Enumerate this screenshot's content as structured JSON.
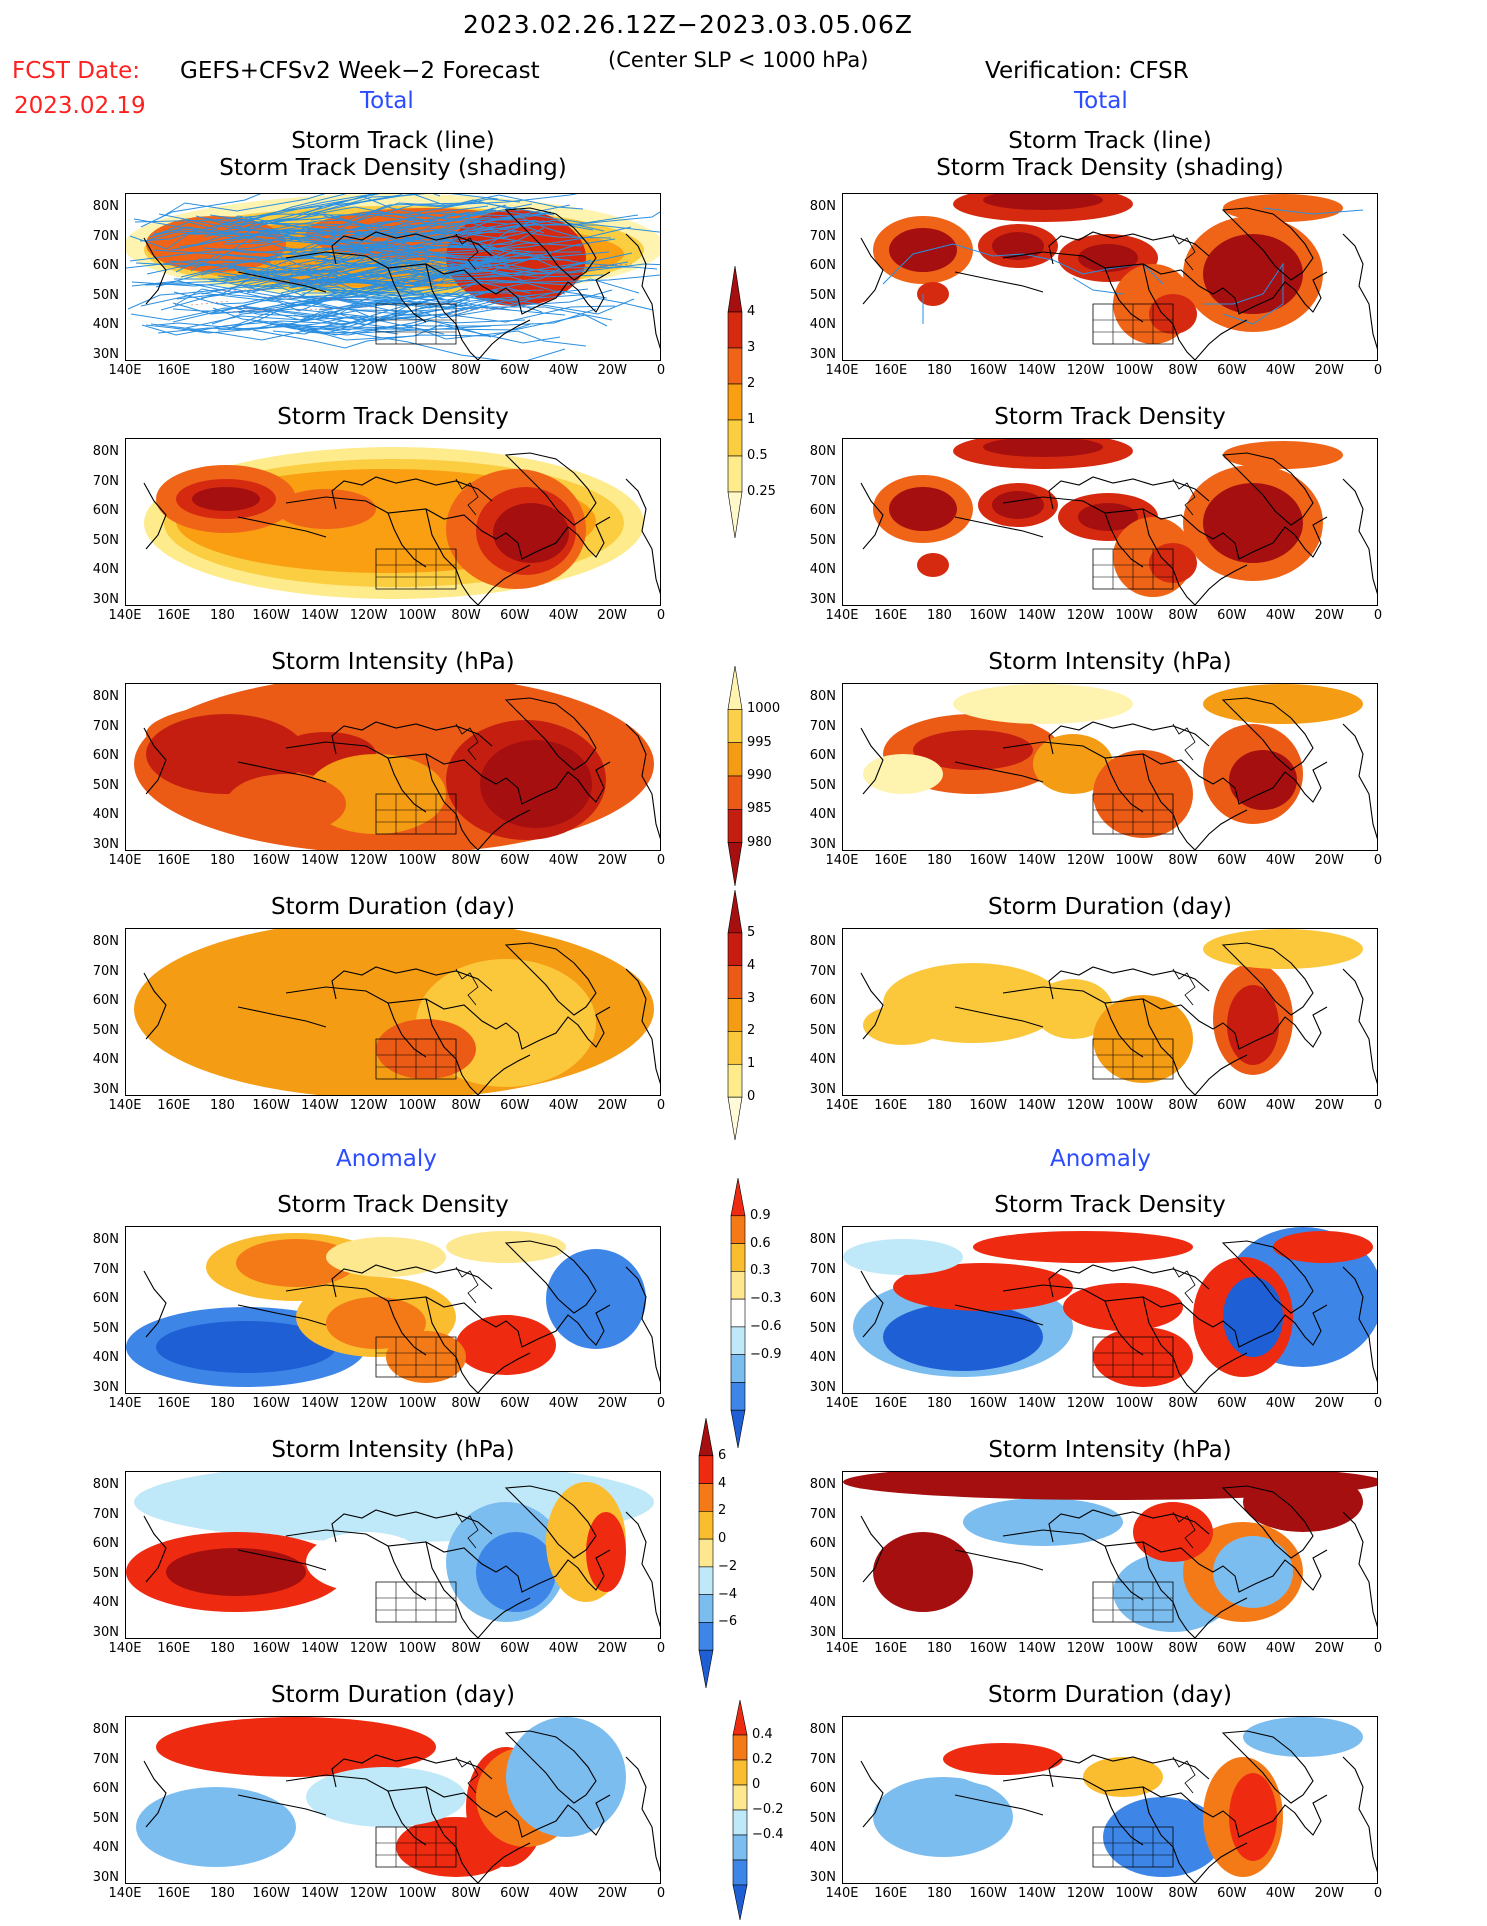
{
  "header": {
    "title": "2023.02.26.12Z−2023.03.05.06Z",
    "fcst_label": "FCST Date:",
    "fcst_date": "2023.02.19",
    "forecast_title": "GEFS+CFSv2 Week−2 Forecast",
    "criterion": "(Center SLP < 1000 hPa)",
    "verification": "Verification: CFSR"
  },
  "sections": {
    "total_left": "Total",
    "total_right": "Total",
    "anomaly_left": "Anomaly",
    "anomaly_right": "Anomaly"
  },
  "panel_titles": {
    "track_line": "Storm Track (line)",
    "track_density_shading": "Storm Track Density (shading)",
    "track_density": "Storm Track Density",
    "intensity": "Storm Intensity (hPa)",
    "duration": "Storm Duration (day)"
  },
  "axes": {
    "lat_ticks": [
      "80N",
      "70N",
      "60N",
      "50N",
      "40N",
      "30N"
    ],
    "lon_ticks": [
      "140E",
      "160E",
      "180",
      "160W",
      "140W",
      "120W",
      "100W",
      "80W",
      "60W",
      "40W",
      "20W",
      "0"
    ]
  },
  "colorbars": {
    "density_total": {
      "labels": [
        "4",
        "3",
        "2",
        "1",
        "0.5",
        "0.25"
      ],
      "colors": [
        "#a50f0f",
        "#d62a10",
        "#f06418",
        "#fa9e12",
        "#fbcd40",
        "#fdeb8c",
        "#fff8c8"
      ]
    },
    "intensity_total": {
      "labels": [
        "1000",
        "995",
        "990",
        "985",
        "980"
      ],
      "colors": [
        "#fff3b0",
        "#fcd04a",
        "#f59c15",
        "#eb5b16",
        "#c41e10",
        "#a50f0f"
      ]
    },
    "duration_total": {
      "labels": [
        "5",
        "4",
        "3",
        "2",
        "1",
        "0"
      ],
      "colors": [
        "#a50f0f",
        "#c91c10",
        "#eb5b16",
        "#f59c15",
        "#fbc83c",
        "#fdeb8c",
        "#fffbd8"
      ]
    },
    "density_anom": {
      "labels": [
        "0.9",
        "0.6",
        "0.3",
        "−0.3",
        "−0.6",
        "−0.9"
      ],
      "colors": [
        "#ee2a10",
        "#f47a18",
        "#fbbd30",
        "#fde890",
        "#ffffff",
        "#bfe8f8",
        "#7cbdf0",
        "#3d86e8",
        "#1f5fd6"
      ]
    },
    "intensity_anom": {
      "labels": [
        "6",
        "4",
        "2",
        "0",
        "−2",
        "−4",
        "−6"
      ],
      "colors": [
        "#a50f0f",
        "#ee2a10",
        "#f47a18",
        "#fbbd30",
        "#fde890",
        "#bfe8f8",
        "#7cbdf0",
        "#3d86e8",
        "#1f5fd6"
      ]
    },
    "duration_anom": {
      "labels": [
        "0.4",
        "0.2",
        "0",
        "−0.2",
        "−0.4"
      ],
      "colors": [
        "#ee2a10",
        "#f47a18",
        "#fbbd30",
        "#fde890",
        "#bfe8f8",
        "#7cbdf0",
        "#3d86e8",
        "#1f5fd6"
      ]
    }
  }
}
